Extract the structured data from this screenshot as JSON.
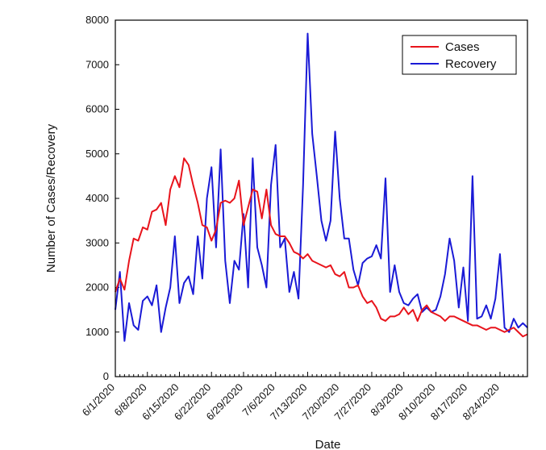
{
  "chart_data": {
    "type": "line",
    "title": "",
    "xlabel": "Date",
    "ylabel": "Number of Cases/Recovery",
    "ylim": [
      0,
      8000
    ],
    "yticks": [
      0,
      1000,
      2000,
      3000,
      4000,
      5000,
      6000,
      7000,
      8000
    ],
    "xticks": [
      "6/1/2020",
      "6/8/2020",
      "6/15/2020",
      "6/22/2020",
      "6/29/2020",
      "7/6/2020",
      "7/13/2020",
      "7/20/2020",
      "7/27/2020",
      "8/3/2020",
      "8/10/2020",
      "8/17/2020",
      "8/24/2020"
    ],
    "x_start": "6/1/2020",
    "x_end": "8/31/2020",
    "grid": false,
    "legend_position": "top-right",
    "colors": {
      "Cases": "#e8141c",
      "Recovery": "#1a1ad6"
    },
    "series": [
      {
        "name": "Cases",
        "values": [
          1900,
          2200,
          1950,
          2600,
          3100,
          3050,
          3350,
          3300,
          3700,
          3750,
          3900,
          3400,
          4200,
          4500,
          4250,
          4900,
          4750,
          4300,
          3900,
          3400,
          3350,
          3050,
          3300,
          3900,
          3950,
          3900,
          4000,
          4400,
          3400,
          3800,
          4200,
          4150,
          3550,
          4200,
          3400,
          3200,
          3150,
          3150,
          3000,
          2800,
          2750,
          2650,
          2750,
          2600,
          2550,
          2500,
          2450,
          2500,
          2300,
          2250,
          2350,
          2000,
          2000,
          2050,
          1800,
          1650,
          1700,
          1550,
          1300,
          1250,
          1350,
          1350,
          1400,
          1550,
          1400,
          1500,
          1250,
          1500,
          1600,
          1450,
          1400,
          1350,
          1250,
          1350,
          1350,
          1300,
          1250,
          1200,
          1150,
          1150,
          1100,
          1050,
          1100,
          1100,
          1050,
          1000,
          1050,
          1100,
          1000,
          900,
          950
        ]
      },
      {
        "name": "Recovery",
        "values": [
          1500,
          2350,
          800,
          1650,
          1150,
          1050,
          1700,
          1800,
          1600,
          2050,
          1000,
          1550,
          2000,
          3150,
          1650,
          2100,
          2250,
          1850,
          3150,
          2200,
          4000,
          4700,
          2900,
          5100,
          2600,
          1650,
          2600,
          2400,
          3650,
          2000,
          4900,
          2900,
          2500,
          2000,
          4300,
          5200,
          2900,
          3100,
          1900,
          2350,
          1750,
          4300,
          7700,
          5450,
          4500,
          3500,
          3050,
          3500,
          5500,
          4000,
          3100,
          3100,
          2400,
          2050,
          2550,
          2650,
          2700,
          2950,
          2650,
          4450,
          1900,
          2500,
          1900,
          1650,
          1600,
          1750,
          1850,
          1450,
          1550,
          1450,
          1500,
          1800,
          2300,
          3100,
          2600,
          1550,
          2450,
          1250,
          4500,
          1300,
          1350,
          1600,
          1300,
          1750,
          2750,
          1100,
          1000,
          1300,
          1100,
          1200,
          1100
        ]
      }
    ]
  }
}
